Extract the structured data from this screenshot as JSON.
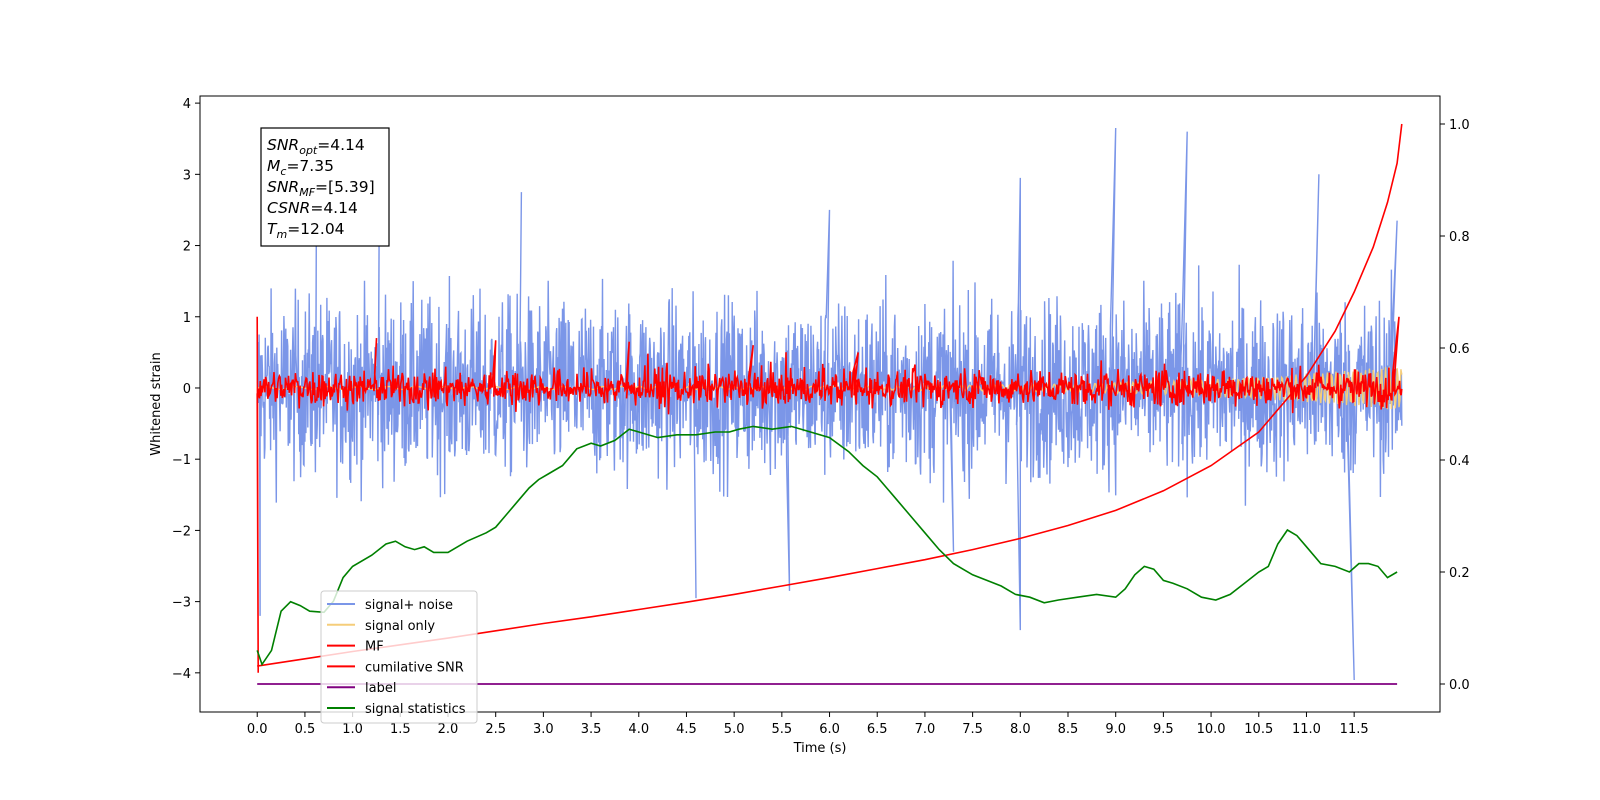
{
  "chart_data": {
    "type": "line",
    "xlabel": "Time (s)",
    "ylabel": "Whitened strain",
    "xlim": [
      -0.6,
      12.4
    ],
    "ylim": [
      -4.55,
      4.1
    ],
    "y2lim": [
      -0.05,
      1.05
    ],
    "xticks": [
      0.0,
      0.5,
      1.0,
      1.5,
      2.0,
      2.5,
      3.0,
      3.5,
      4.0,
      4.5,
      5.0,
      5.5,
      6.0,
      6.5,
      7.0,
      7.5,
      8.0,
      8.5,
      9.0,
      9.5,
      10.0,
      10.5,
      11.0,
      11.5
    ],
    "xtick_labels": [
      "0.0",
      "0.5",
      "1.0",
      "1.5",
      "2.0",
      "2.5",
      "3.0",
      "3.5",
      "4.0",
      "4.5",
      "5.0",
      "5.5",
      "6.0",
      "6.5",
      "7.0",
      "7.5",
      "8.0",
      "8.5",
      "9.0",
      "9.5",
      "10.0",
      "10.5",
      "11.0",
      "11.5"
    ],
    "yticks": [
      -4,
      -3,
      -2,
      -1,
      0,
      1,
      2,
      3,
      4
    ],
    "ytick_labels": [
      "−4",
      "−3",
      "−2",
      "−1",
      "0",
      "1",
      "2",
      "3",
      "4"
    ],
    "y2ticks": [
      0.0,
      0.2,
      0.4,
      0.6,
      0.8,
      1.0
    ],
    "y2tick_labels": [
      "0.0",
      "0.2",
      "0.4",
      "0.6",
      "0.8",
      "1.0"
    ],
    "legend_position": "lower-left",
    "annotation": {
      "lines": [
        {
          "main": "SNR",
          "sub": "opt",
          "rest": "=4.14"
        },
        {
          "main": "M",
          "sub": "c",
          "rest": "=7.35"
        },
        {
          "main": "SNR",
          "sub": "MF",
          "rest": "=[5.39]"
        },
        {
          "main": "CSNR",
          "sub": "",
          "rest": "=4.14"
        },
        {
          "main": "T",
          "sub": "m",
          "rest": "=12.04"
        }
      ]
    },
    "series": [
      {
        "name": "signal+ noise",
        "color": "#7b96e8",
        "axis": "left",
        "description": "noisy whitened strain, roughly within ±1.9 with spikes up to 3.65 and down to -4.1",
        "spikes": [
          [
            0.03,
            -3.2
          ],
          [
            0.62,
            2.5
          ],
          [
            1.28,
            2.7
          ],
          [
            2.77,
            2.75
          ],
          [
            4.6,
            -2.95
          ],
          [
            5.58,
            -2.85
          ],
          [
            6.0,
            2.5
          ],
          [
            7.3,
            -2.3
          ],
          [
            8.0,
            2.95
          ],
          [
            8.0,
            -3.4
          ],
          [
            9.0,
            3.65
          ],
          [
            9.75,
            3.6
          ],
          [
            11.13,
            3.0
          ],
          [
            11.5,
            -4.1
          ],
          [
            11.95,
            2.35
          ]
        ]
      },
      {
        "name": "signal only",
        "color": "#f5cd7a",
        "axis": "left",
        "description": "chirp signal, small amplitude growing near the end (about ±0.3 at 11.8 s)"
      },
      {
        "name": "MF",
        "color": "#ff0000",
        "axis": "left",
        "description": "matched filter output fluctuating around 0 within about ±0.4, starts at 1.0 and ends at 1.0",
        "spikes": [
          [
            0.0,
            1.0
          ],
          [
            0.01,
            -4.0
          ],
          [
            1.25,
            0.7
          ],
          [
            2.5,
            0.67
          ],
          [
            3.9,
            0.65
          ],
          [
            5.2,
            0.6
          ],
          [
            6.3,
            0.5
          ],
          [
            11.97,
            1.0
          ]
        ]
      },
      {
        "name": "cumilative SNR",
        "color": "#ff0000",
        "axis": "right",
        "x": [
          0.0,
          0.5,
          1.0,
          1.5,
          2.0,
          2.5,
          3.0,
          3.5,
          4.0,
          4.5,
          5.0,
          5.5,
          6.0,
          6.5,
          7.0,
          7.5,
          8.0,
          8.5,
          9.0,
          9.5,
          10.0,
          10.5,
          11.0,
          11.3,
          11.5,
          11.7,
          11.85,
          11.95,
          12.0
        ],
        "y": [
          0.032,
          0.045,
          0.058,
          0.07,
          0.082,
          0.095,
          0.108,
          0.12,
          0.133,
          0.146,
          0.16,
          0.175,
          0.19,
          0.206,
          0.222,
          0.24,
          0.26,
          0.283,
          0.31,
          0.345,
          0.39,
          0.45,
          0.55,
          0.63,
          0.7,
          0.78,
          0.86,
          0.93,
          1.0
        ]
      },
      {
        "name": "label",
        "color": "#800080",
        "axis": "right",
        "x": [
          0.0,
          11.95
        ],
        "y": [
          0.0,
          0.0
        ]
      },
      {
        "name": "signal statistics",
        "color": "#008000",
        "axis": "right",
        "x": [
          0.0,
          0.05,
          0.15,
          0.25,
          0.35,
          0.45,
          0.55,
          0.7,
          0.8,
          0.9,
          1.0,
          1.2,
          1.35,
          1.45,
          1.55,
          1.65,
          1.75,
          1.85,
          2.0,
          2.2,
          2.4,
          2.5,
          2.65,
          2.75,
          2.85,
          2.95,
          3.05,
          3.2,
          3.35,
          3.5,
          3.6,
          3.75,
          3.9,
          4.0,
          4.2,
          4.4,
          4.6,
          4.8,
          4.95,
          5.05,
          5.2,
          5.4,
          5.6,
          5.8,
          6.0,
          6.2,
          6.35,
          6.5,
          6.7,
          6.85,
          7.0,
          7.15,
          7.3,
          7.5,
          7.65,
          7.8,
          7.95,
          8.1,
          8.25,
          8.4,
          8.6,
          8.8,
          9.0,
          9.1,
          9.2,
          9.3,
          9.4,
          9.5,
          9.6,
          9.75,
          9.9,
          10.05,
          10.2,
          10.35,
          10.5,
          10.6,
          10.7,
          10.8,
          10.9,
          11.0,
          11.15,
          11.3,
          11.45,
          11.55,
          11.65,
          11.75,
          11.85,
          11.95
        ],
        "y": [
          0.06,
          0.035,
          0.06,
          0.13,
          0.147,
          0.14,
          0.13,
          0.128,
          0.148,
          0.19,
          0.21,
          0.23,
          0.25,
          0.255,
          0.245,
          0.24,
          0.245,
          0.235,
          0.235,
          0.255,
          0.27,
          0.28,
          0.31,
          0.33,
          0.35,
          0.365,
          0.375,
          0.39,
          0.42,
          0.43,
          0.425,
          0.435,
          0.455,
          0.45,
          0.44,
          0.445,
          0.445,
          0.45,
          0.45,
          0.455,
          0.46,
          0.455,
          0.46,
          0.45,
          0.44,
          0.415,
          0.39,
          0.37,
          0.33,
          0.3,
          0.27,
          0.24,
          0.215,
          0.195,
          0.185,
          0.175,
          0.16,
          0.155,
          0.145,
          0.15,
          0.155,
          0.16,
          0.155,
          0.17,
          0.195,
          0.21,
          0.205,
          0.185,
          0.18,
          0.17,
          0.155,
          0.15,
          0.16,
          0.18,
          0.2,
          0.21,
          0.25,
          0.275,
          0.265,
          0.245,
          0.215,
          0.21,
          0.2,
          0.215,
          0.215,
          0.21,
          0.19,
          0.2
        ]
      }
    ]
  }
}
